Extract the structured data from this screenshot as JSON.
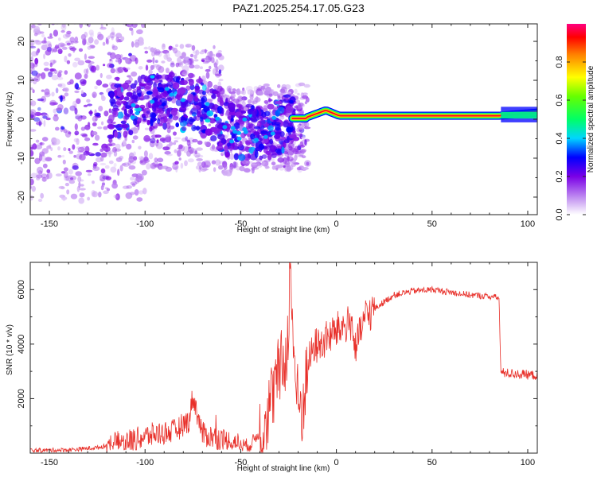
{
  "title": "PAZ1.2025.254.17.05.G23",
  "colors": {
    "snr_line": "#e8302a",
    "colormap": [
      "#ffffff",
      "#8a2be2",
      "#0000ff",
      "#00e5ff",
      "#00ff00",
      "#ffff00",
      "#ff8000",
      "#ff0000",
      "#ff0080"
    ]
  },
  "chart_data": [
    {
      "type": "heatmap",
      "title": "PAZ1.2025.254.17.05.G23",
      "xlabel": "Height of straight line (km)",
      "ylabel": "Frequency (Hz)",
      "xlim": [
        -160,
        105
      ],
      "ylim": [
        -24.5,
        24.5
      ],
      "xticks": [
        -150,
        -100,
        -50,
        0,
        50,
        100
      ],
      "yticks": [
        -20,
        -10,
        0,
        10,
        20
      ],
      "colorbar": {
        "label": "Normalized spectral amplitude",
        "range": [
          0,
          1
        ],
        "ticks": [
          0.0,
          0.2,
          0.4,
          0.6,
          0.8
        ]
      },
      "description_points": [
        {
          "x": -110,
          "y": 3,
          "amp": 0.25
        },
        {
          "x": -90,
          "y": 5,
          "amp": 0.3
        },
        {
          "x": -70,
          "y": 3,
          "amp": 0.3
        },
        {
          "x": -55,
          "y": -3,
          "amp": 0.3
        },
        {
          "x": -35,
          "y": -3,
          "amp": 0.3
        },
        {
          "x": -22,
          "y": 0,
          "amp": 0.6
        },
        {
          "x": -10,
          "y": 1.5,
          "amp": 0.9
        },
        {
          "x": 0,
          "y": 1,
          "amp": 0.95
        },
        {
          "x": 50,
          "y": 0.8,
          "amp": 1.0
        },
        {
          "x": 100,
          "y": 1.5,
          "amp": 0.5
        }
      ]
    },
    {
      "type": "line",
      "xlabel": "Height of straight line (km)",
      "ylabel": "SNR (10 * v/v)",
      "xlim": [
        -160,
        105
      ],
      "ylim": [
        0,
        7000
      ],
      "xticks": [
        -150,
        -100,
        -50,
        0,
        50,
        100
      ],
      "yticks": [
        2000,
        4000,
        6000
      ],
      "series": [
        {
          "name": "SNR",
          "x": [
            -160,
            -140,
            -125,
            -115,
            -105,
            -95,
            -85,
            -77,
            -75,
            -70,
            -60,
            -50,
            -45,
            -40,
            -35,
            -30,
            -26,
            -24,
            -22,
            -20,
            -18,
            -15,
            -12,
            -8,
            -5,
            0,
            5,
            8,
            10,
            15,
            20,
            30,
            40,
            50,
            60,
            70,
            80,
            85,
            86,
            87,
            95,
            105
          ],
          "values": [
            100,
            120,
            200,
            350,
            500,
            700,
            800,
            1200,
            2100,
            700,
            500,
            300,
            300,
            800,
            1700,
            3000,
            3500,
            6800,
            3300,
            1800,
            1500,
            3200,
            3900,
            4000,
            4200,
            4500,
            4700,
            4800,
            3800,
            5000,
            5300,
            5800,
            5950,
            6000,
            5900,
            5800,
            5750,
            5700,
            2900,
            2950,
            2900,
            2850
          ]
        }
      ]
    }
  ]
}
